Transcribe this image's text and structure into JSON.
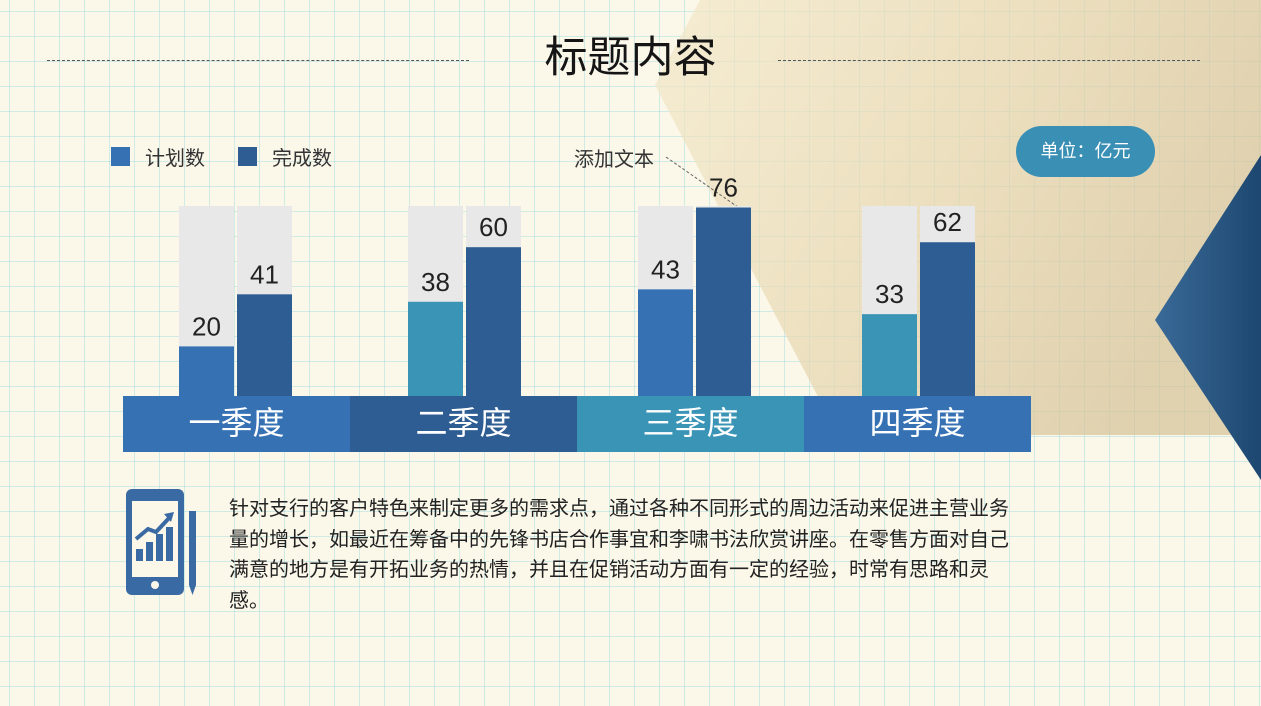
{
  "title": "标题内容",
  "unit_badge": "单位：亿元",
  "annotation": "添加文本",
  "description": "针对支行的客户特色来制定更多的需求点，通过各种不同形式的周边活动来促进主营业务量的增长，如最近在筹备中的先锋书店合作事宜和李啸书法欣赏讲座。在零售方面对自己满意的地方是有开拓业务的热情，并且在促销活动方面有一定的经验，时常有思路和灵感。",
  "colors": {
    "planned_q1q3": "#3571b3",
    "planned_q2q4": "#3a94b6",
    "completed": "#2d5d92",
    "track": "#e8e8e8",
    "label_bar": [
      "#3571b3",
      "#2d5d92",
      "#3a94b6",
      "#3571b3"
    ],
    "badge": "#3a8fb5"
  },
  "icons": {
    "chart_icon": "phone-with-growth-chart-and-pen-icon"
  },
  "chart_data": {
    "type": "bar",
    "title": "标题内容",
    "categories": [
      "一季度",
      "二季度",
      "三季度",
      "四季度"
    ],
    "series": [
      {
        "name": "计划数",
        "values": [
          20,
          38,
          43,
          33
        ]
      },
      {
        "name": "完成数",
        "values": [
          41,
          60,
          76,
          62
        ]
      }
    ],
    "ylim": [
      0,
      100
    ],
    "legend_position": "top-left",
    "grid": false,
    "data_labels": true
  }
}
